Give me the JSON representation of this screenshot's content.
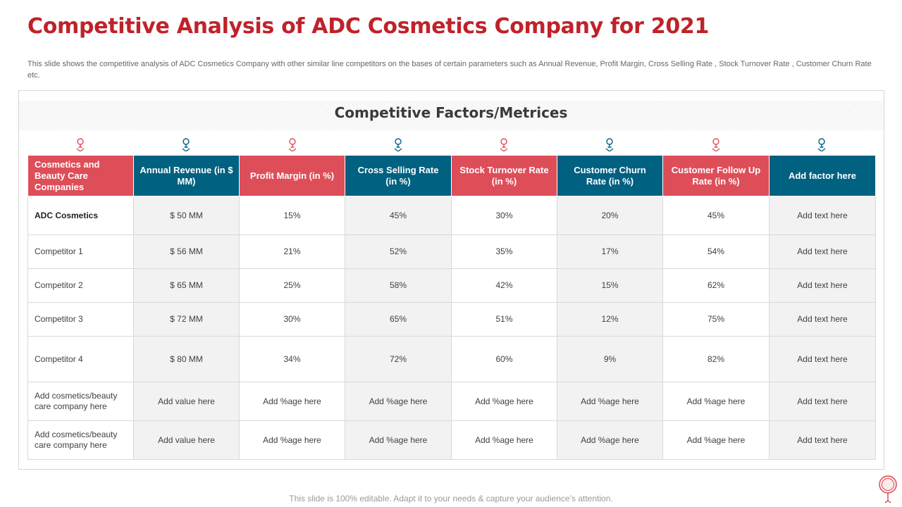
{
  "title": "Competitive Analysis of ADC Cosmetics Company for 2021",
  "subtitle": "This slide shows the competitive analysis of ADC Cosmetics Company with other similar line competitors on the bases of certain parameters such as Annual Revenue, Profit Margin, Cross Selling Rate , Stock Turnover Rate , Customer Churn Rate etc.",
  "factors_title": "Competitive Factors/Metrices",
  "colors": {
    "accent_red": "#c0222a",
    "header_red": "#de4e59",
    "header_blue": "#006180"
  },
  "markers": [
    {
      "icon": "female-symbol-icon",
      "color": "#de4e59"
    },
    {
      "icon": "female-symbol-icon",
      "color": "#006180"
    },
    {
      "icon": "female-symbol-icon",
      "color": "#de4e59"
    },
    {
      "icon": "female-symbol-icon",
      "color": "#006180"
    },
    {
      "icon": "female-symbol-icon",
      "color": "#de4e59"
    },
    {
      "icon": "female-symbol-icon",
      "color": "#006180"
    },
    {
      "icon": "female-symbol-icon",
      "color": "#de4e59"
    },
    {
      "icon": "female-symbol-icon",
      "color": "#006180"
    }
  ],
  "table": {
    "headers": [
      "Cosmetics and Beauty Care Companies",
      "Annual Revenue (in $ MM)",
      "Profit Margin (in %)",
      "Cross Selling Rate (in %)",
      "Stock Turnover Rate (in %)",
      "Customer Churn Rate (in %)",
      "Customer Follow Up Rate (in %)",
      "Add factor here"
    ],
    "rows": [
      [
        "ADC Cosmetics",
        "$ 50 MM",
        "15%",
        "45%",
        "30%",
        "20%",
        "45%",
        "Add text here"
      ],
      [
        "Competitor 1",
        "$ 56 MM",
        "21%",
        "52%",
        "35%",
        "17%",
        "54%",
        "Add text here"
      ],
      [
        "Competitor 2",
        "$ 65 MM",
        "25%",
        "58%",
        "42%",
        "15%",
        "62%",
        "Add text here"
      ],
      [
        "Competitor 3",
        "$ 72 MM",
        "30%",
        "65%",
        "51%",
        "12%",
        "75%",
        "Add text here"
      ],
      [
        "Competitor 4",
        "$ 80 MM",
        "34%",
        "72%",
        "60%",
        "9%",
        "82%",
        "Add text here"
      ],
      [
        "Add cosmetics/beauty care company here",
        "Add value here",
        "Add %age here",
        "Add %age here",
        "Add %age here",
        "Add %age here",
        "Add %age here",
        "Add text here"
      ],
      [
        "Add cosmetics/beauty care company here",
        "Add value here",
        "Add %age here",
        "Add %age here",
        "Add %age here",
        "Add %age here",
        "Add %age here",
        "Add text here"
      ]
    ]
  },
  "footer": "This slide is 100% editable. Adapt it to your needs & capture your audience’s attention."
}
